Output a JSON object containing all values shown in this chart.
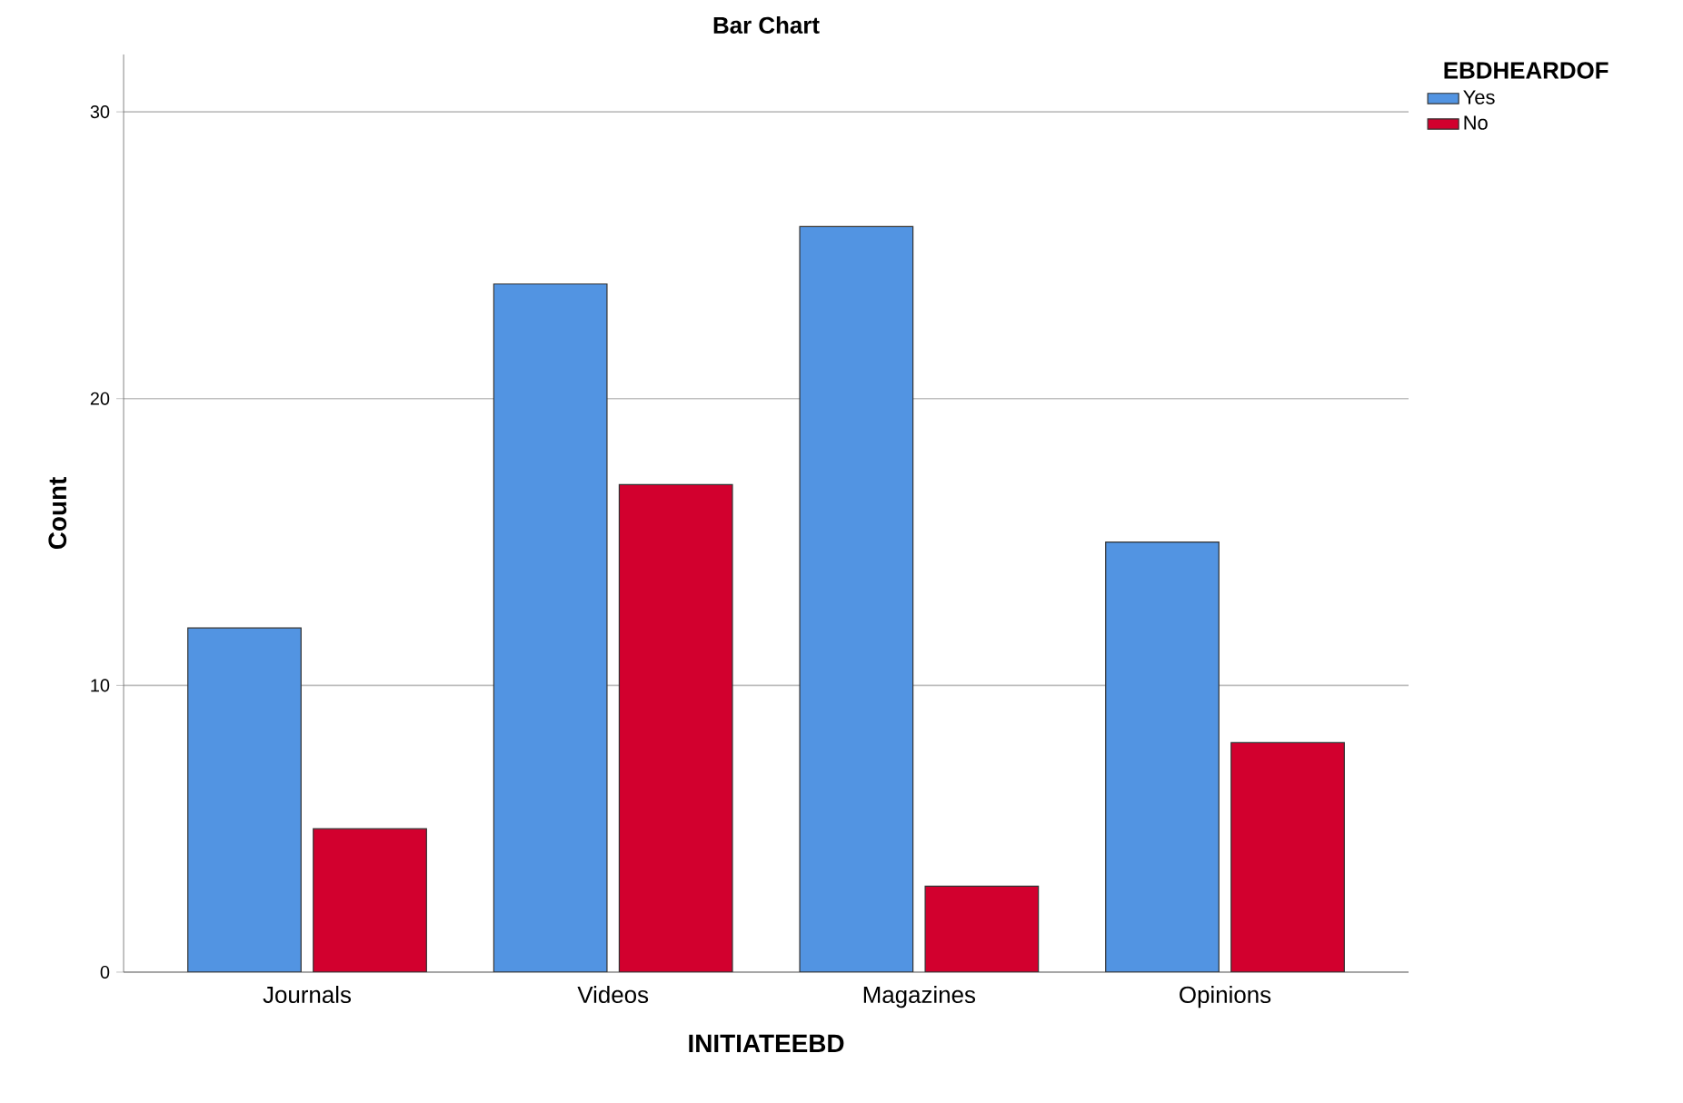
{
  "chart_data": {
    "type": "bar",
    "title": "Bar Chart",
    "xlabel": "INITIATEEBD",
    "ylabel": "Count",
    "legend_title": "EBDHEARDOF",
    "categories": [
      "Journals",
      "Videos",
      "Magazines",
      "Opinions"
    ],
    "series": [
      {
        "name": "Yes",
        "color": "#5294e2",
        "values": [
          12,
          24,
          26,
          15
        ]
      },
      {
        "name": "No",
        "color": "#d2002e",
        "values": [
          5,
          17,
          3,
          8
        ]
      }
    ],
    "ylim": [
      0,
      32
    ],
    "yticks": [
      0,
      10,
      20,
      30
    ],
    "grid": "y",
    "legend": "top right"
  }
}
